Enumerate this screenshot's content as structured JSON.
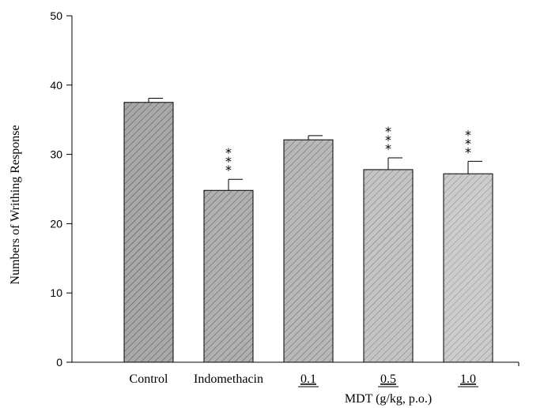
{
  "chart_data": {
    "type": "bar",
    "ylabel": "Numbers of Writhing Response",
    "xlabel": "MDT (g/kg, p.o.)",
    "ylim": [
      0,
      50
    ],
    "yticks": [
      0,
      10,
      20,
      30,
      40,
      50
    ],
    "categories": [
      "Control",
      "Indomethacin",
      "0.1",
      "0.5",
      "1.0"
    ],
    "values": [
      37.5,
      24.8,
      32.1,
      27.8,
      27.2
    ],
    "error": [
      0.6,
      1.6,
      0.6,
      1.7,
      1.8
    ],
    "significance": [
      "",
      "***",
      "",
      "***",
      "***"
    ],
    "underlined_categories": [
      "0.1",
      "0.5",
      "1.0"
    ],
    "bar_colors": [
      "#a8a8a8",
      "#b0b0b0",
      "#b8b8b8",
      "#c4c4c4",
      "#cccccc"
    ],
    "grid": false
  }
}
